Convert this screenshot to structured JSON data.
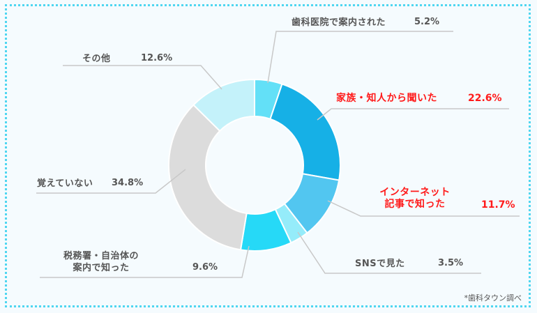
{
  "chart_data": {
    "type": "pie",
    "subtype": "donut",
    "title": "",
    "start_angle": "12 o'clock, clockwise",
    "categories": [
      "歯科医院で案内された",
      "家族・知人から聞いた",
      "インターネット記事で知った",
      "SNSで見た",
      "税務署・自治体の案内で知った",
      "覚えていない",
      "その他"
    ],
    "values": [
      5.2,
      22.6,
      11.7,
      3.5,
      9.6,
      34.8,
      12.6
    ],
    "unit": "%",
    "colors": [
      "#63e0f7",
      "#16b0e6",
      "#52c6f0",
      "#95ecfa",
      "#26d9f7",
      "#dcdcdc",
      "#c4f2fa"
    ],
    "highlighted": [
      "家族・知人から聞いた",
      "インターネット記事で知った"
    ],
    "source_note": "*歯科タウン調べ"
  },
  "labels": {
    "dental": {
      "text": "歯科医院で案内された",
      "pct": "5.2%"
    },
    "family": {
      "text": "家族・知人から聞いた",
      "pct": "22.6%"
    },
    "internet_l1": "インターネット",
    "internet_l2": "記事で知った",
    "internet_pct": "11.7%",
    "sns": {
      "text": "SNSで見た",
      "pct": "3.5%"
    },
    "tax_l1": "税務署・自治体の",
    "tax_l2": "案内で知った",
    "tax_pct": "9.6%",
    "forgot": {
      "text": "覚えていない",
      "pct": "34.8%"
    },
    "other": {
      "text": "その他",
      "pct": "12.6%"
    }
  },
  "source": "*歯科タウン調べ"
}
